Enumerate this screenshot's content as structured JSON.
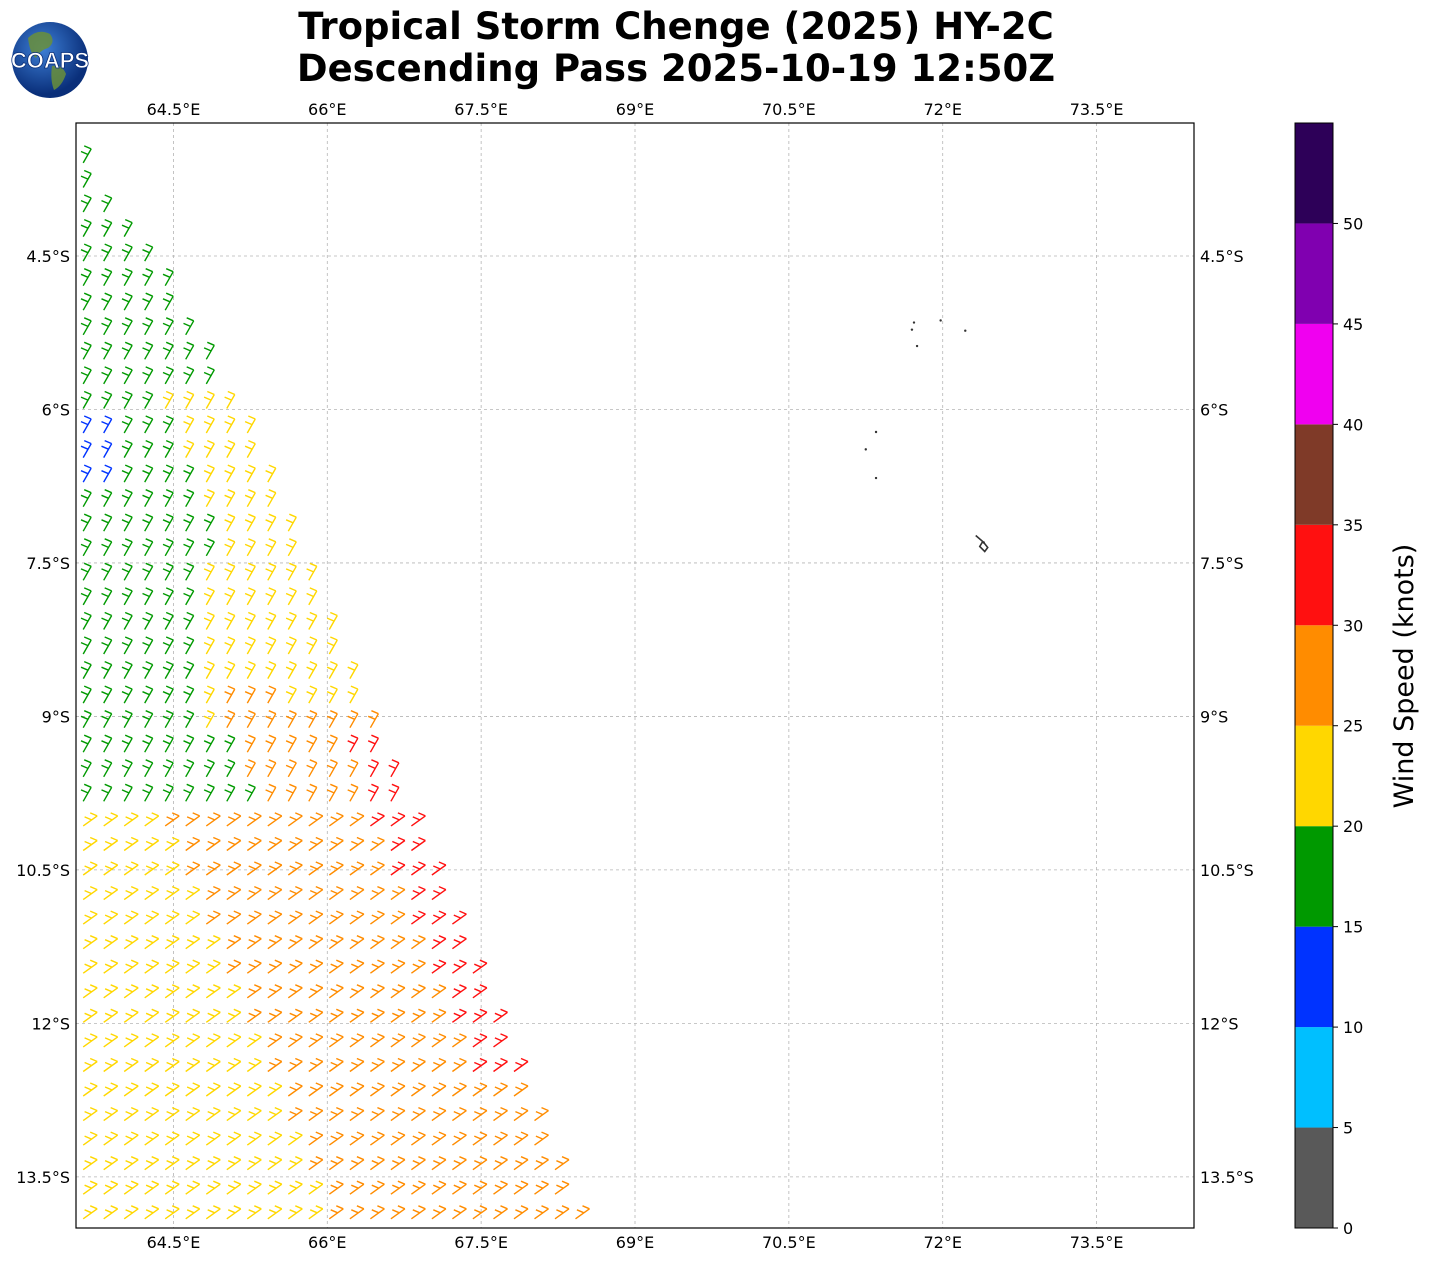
{
  "header": {
    "title_line1": "Tropical Storm Chenge (2025) HY-2C",
    "title_line2": "Descending Pass 2025-10-19 12:50Z"
  },
  "logo": {
    "text": "COAPS",
    "icon": "globe-icon"
  },
  "chart_data": {
    "type": "wind-barb-map",
    "x_ticks": [
      "64.5°E",
      "66°E",
      "67.5°E",
      "69°E",
      "70.5°E",
      "72°E",
      "73.5°E"
    ],
    "x_tick_values": [
      64.5,
      66,
      67.5,
      69,
      70.5,
      72,
      73.5
    ],
    "y_ticks": [
      "4.5°S",
      "6°S",
      "7.5°S",
      "9°S",
      "10.5°S",
      "12°S",
      "13.5°S"
    ],
    "y_tick_values": [
      -4.5,
      -6,
      -7.5,
      -9,
      -10.5,
      -12,
      -13.5
    ],
    "xlim": [
      63.55,
      74.45
    ],
    "ylim": [
      -14.0,
      -3.2
    ],
    "grid": true,
    "colorbar": {
      "label": "Wind Speed (knots)",
      "ticks": [
        "0",
        "5",
        "10",
        "15",
        "20",
        "25",
        "30",
        "35",
        "40",
        "45",
        "50"
      ],
      "bins": [
        {
          "min": 0,
          "max": 5,
          "color": "#595959"
        },
        {
          "min": 5,
          "max": 10,
          "color": "#00bfff"
        },
        {
          "min": 10,
          "max": 15,
          "color": "#0033ff"
        },
        {
          "min": 15,
          "max": 20,
          "color": "#009900"
        },
        {
          "min": 20,
          "max": 25,
          "color": "#ffd700"
        },
        {
          "min": 25,
          "max": 30,
          "color": "#ff8c00"
        },
        {
          "min": 30,
          "max": 35,
          "color": "#ff1010"
        },
        {
          "min": 35,
          "max": 40,
          "color": "#7f3a28"
        },
        {
          "min": 40,
          "max": 45,
          "color": "#f000f0"
        },
        {
          "min": 45,
          "max": 50,
          "color": "#8000b0"
        },
        {
          "min": 50,
          "max": 55,
          "color": "#2d0058"
        }
      ]
    },
    "swath": {
      "west_lon": 63.55,
      "east_edge": [
        [
          63.55,
          -3.3
        ],
        [
          65.0,
          -5.5
        ],
        [
          66.5,
          -8.9
        ],
        [
          68.6,
          -14.0
        ]
      ],
      "bands": [
        {
          "label": "20-25 kt",
          "color": "#ffd700",
          "region": "north-strip"
        },
        {
          "label": "15-20 kt",
          "color": "#009900",
          "region": "north-interior"
        },
        {
          "label": "20-25 kt",
          "color": "#ffd700",
          "region": "central-east"
        },
        {
          "label": "25-30 kt",
          "color": "#ff8c00",
          "region": "south-central"
        },
        {
          "label": "30-35 kt",
          "color": "#ff1010",
          "region": "east-edge-10S-12.5S"
        },
        {
          "label": "10-15 kt",
          "color": "#0033ff",
          "region": "west-edge-6.5S"
        }
      ]
    },
    "islands": [
      {
        "lon": 71.7,
        "lat": -5.22
      },
      {
        "lon": 71.72,
        "lat": -5.15
      },
      {
        "lon": 71.98,
        "lat": -5.13
      },
      {
        "lon": 72.22,
        "lat": -5.23
      },
      {
        "lon": 71.75,
        "lat": -5.38
      },
      {
        "lon": 71.35,
        "lat": -6.22
      },
      {
        "lon": 71.25,
        "lat": -6.39
      },
      {
        "lon": 71.35,
        "lat": -6.67
      },
      {
        "lon": 72.4,
        "lat": -7.3
      }
    ]
  }
}
